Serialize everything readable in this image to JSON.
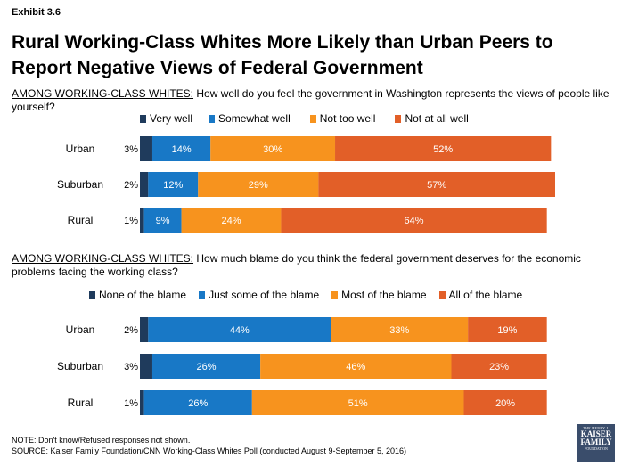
{
  "exhibit": "Exhibit 3.6",
  "title": "Rural Working-Class Whites More Likely than Urban Peers to Report Negative Views of Federal Government",
  "colors": {
    "c1": "#1f3b5c",
    "c2": "#1878c6",
    "c3": "#f7931e",
    "c4": "#e25f28"
  },
  "chart_data": [
    {
      "type": "bar",
      "orientation": "horizontal",
      "stacked": true,
      "question_lead": "AMONG WORKING-CLASS WHITES:",
      "question": "How well do you feel the government in Washington represents the views of people like yourself?",
      "categories": [
        "Urban",
        "Suburban",
        "Rural"
      ],
      "series": [
        {
          "name": "Very well",
          "values": [
            3,
            2,
            1
          ],
          "color": "#1f3b5c"
        },
        {
          "name": "Somewhat well",
          "values": [
            14,
            12,
            9
          ],
          "color": "#1878c6"
        },
        {
          "name": "Not too well",
          "values": [
            30,
            29,
            24
          ],
          "color": "#f7931e"
        },
        {
          "name": "Not at all well",
          "values": [
            52,
            57,
            64
          ],
          "color": "#e25f28"
        }
      ],
      "legend_position": "top"
    },
    {
      "type": "bar",
      "orientation": "horizontal",
      "stacked": true,
      "question_lead": "AMONG WORKING-CLASS WHITES:",
      "question": "How much blame do you think the federal government deserves for the economic problems facing the working class?",
      "categories": [
        "Urban",
        "Suburban",
        "Rural"
      ],
      "series": [
        {
          "name": "None of the blame",
          "values": [
            2,
            3,
            1
          ],
          "color": "#1f3b5c"
        },
        {
          "name": "Just some of the blame",
          "values": [
            44,
            26,
            26
          ],
          "color": "#1878c6"
        },
        {
          "name": "Most of the blame",
          "values": [
            33,
            46,
            51
          ],
          "color": "#f7931e"
        },
        {
          "name": "All of the blame",
          "values": [
            19,
            23,
            20
          ],
          "color": "#e25f28"
        }
      ],
      "legend_position": "top"
    }
  ],
  "note": "NOTE: Don't know/Refused responses not shown.",
  "source": "SOURCE: Kaiser Family Foundation/CNN Working-Class Whites Poll (conducted August 9-September 5, 2016)",
  "logo": {
    "line1": "THE HENRY J.",
    "line2": "KAISER",
    "line3": "FAMILY",
    "line4": "FOUNDATION"
  }
}
